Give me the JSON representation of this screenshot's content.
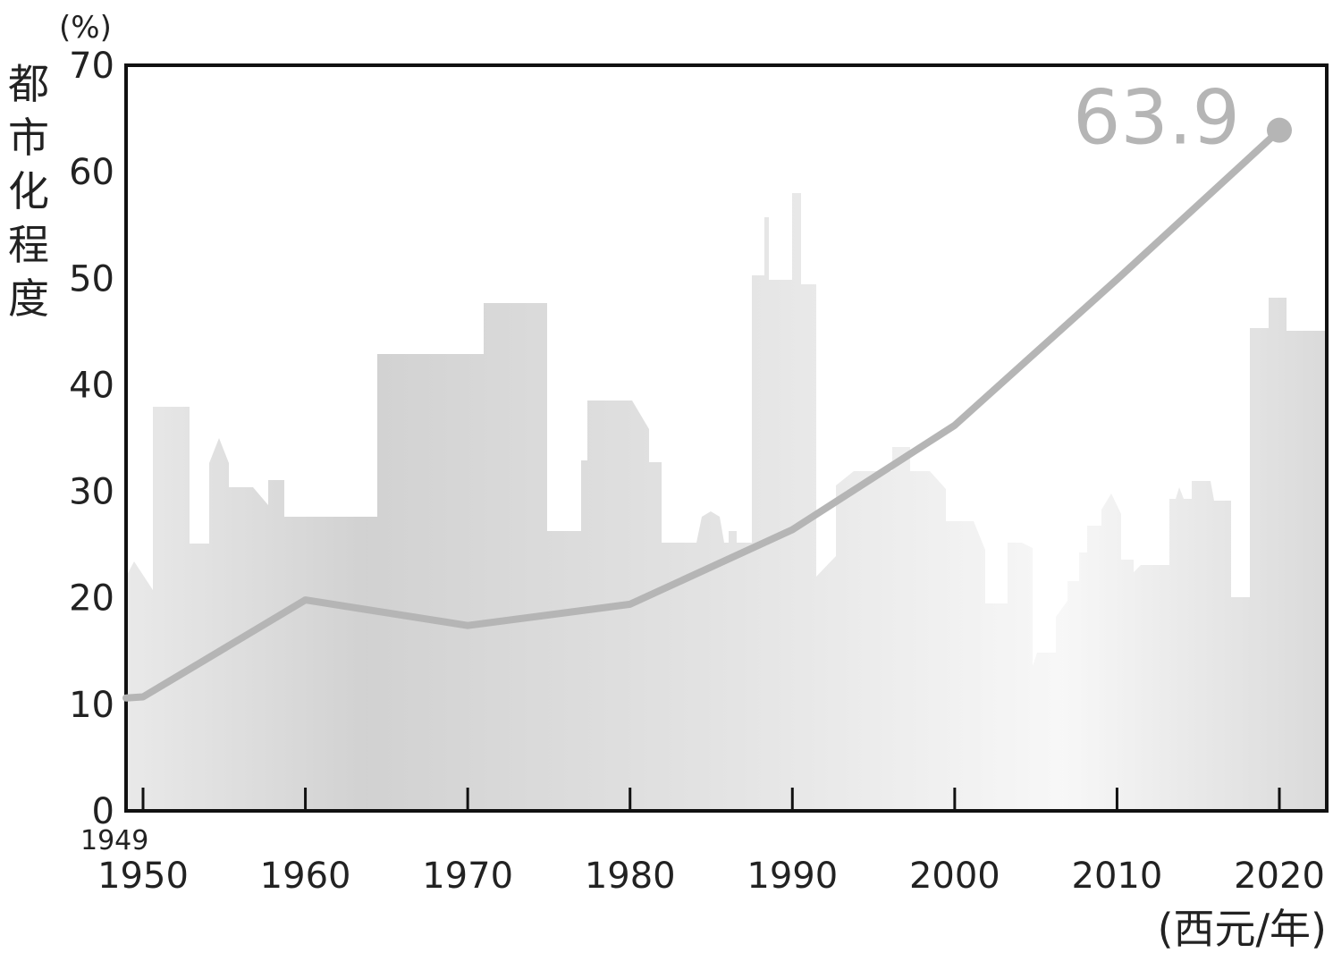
{
  "chart_data": {
    "type": "line",
    "x": [
      1949,
      1960,
      1970,
      1980,
      1990,
      2000,
      2010,
      2020
    ],
    "series": [
      {
        "values": [
          10.6,
          19.8,
          17.4,
          19.4,
          26.4,
          36.2,
          49.9,
          63.9
        ]
      }
    ],
    "ylim": [
      0,
      70
    ],
    "xlim": [
      1949,
      2023
    ],
    "yticks": [
      "0",
      "10",
      "20",
      "30",
      "40",
      "50",
      "60",
      "70"
    ],
    "xticks": [
      "1950",
      "1960",
      "1970",
      "1980",
      "1990",
      "2000",
      "2010",
      "2020"
    ],
    "first_year_label": "1949",
    "ylabel": "都市化程度",
    "yunit": "(%)",
    "xunit": "(西元/年)",
    "end_annotation": "63.9",
    "grid": false,
    "colors": {
      "line": "#b5b5b5",
      "frame": "#111111",
      "skyline": "#dcdcdc"
    }
  }
}
